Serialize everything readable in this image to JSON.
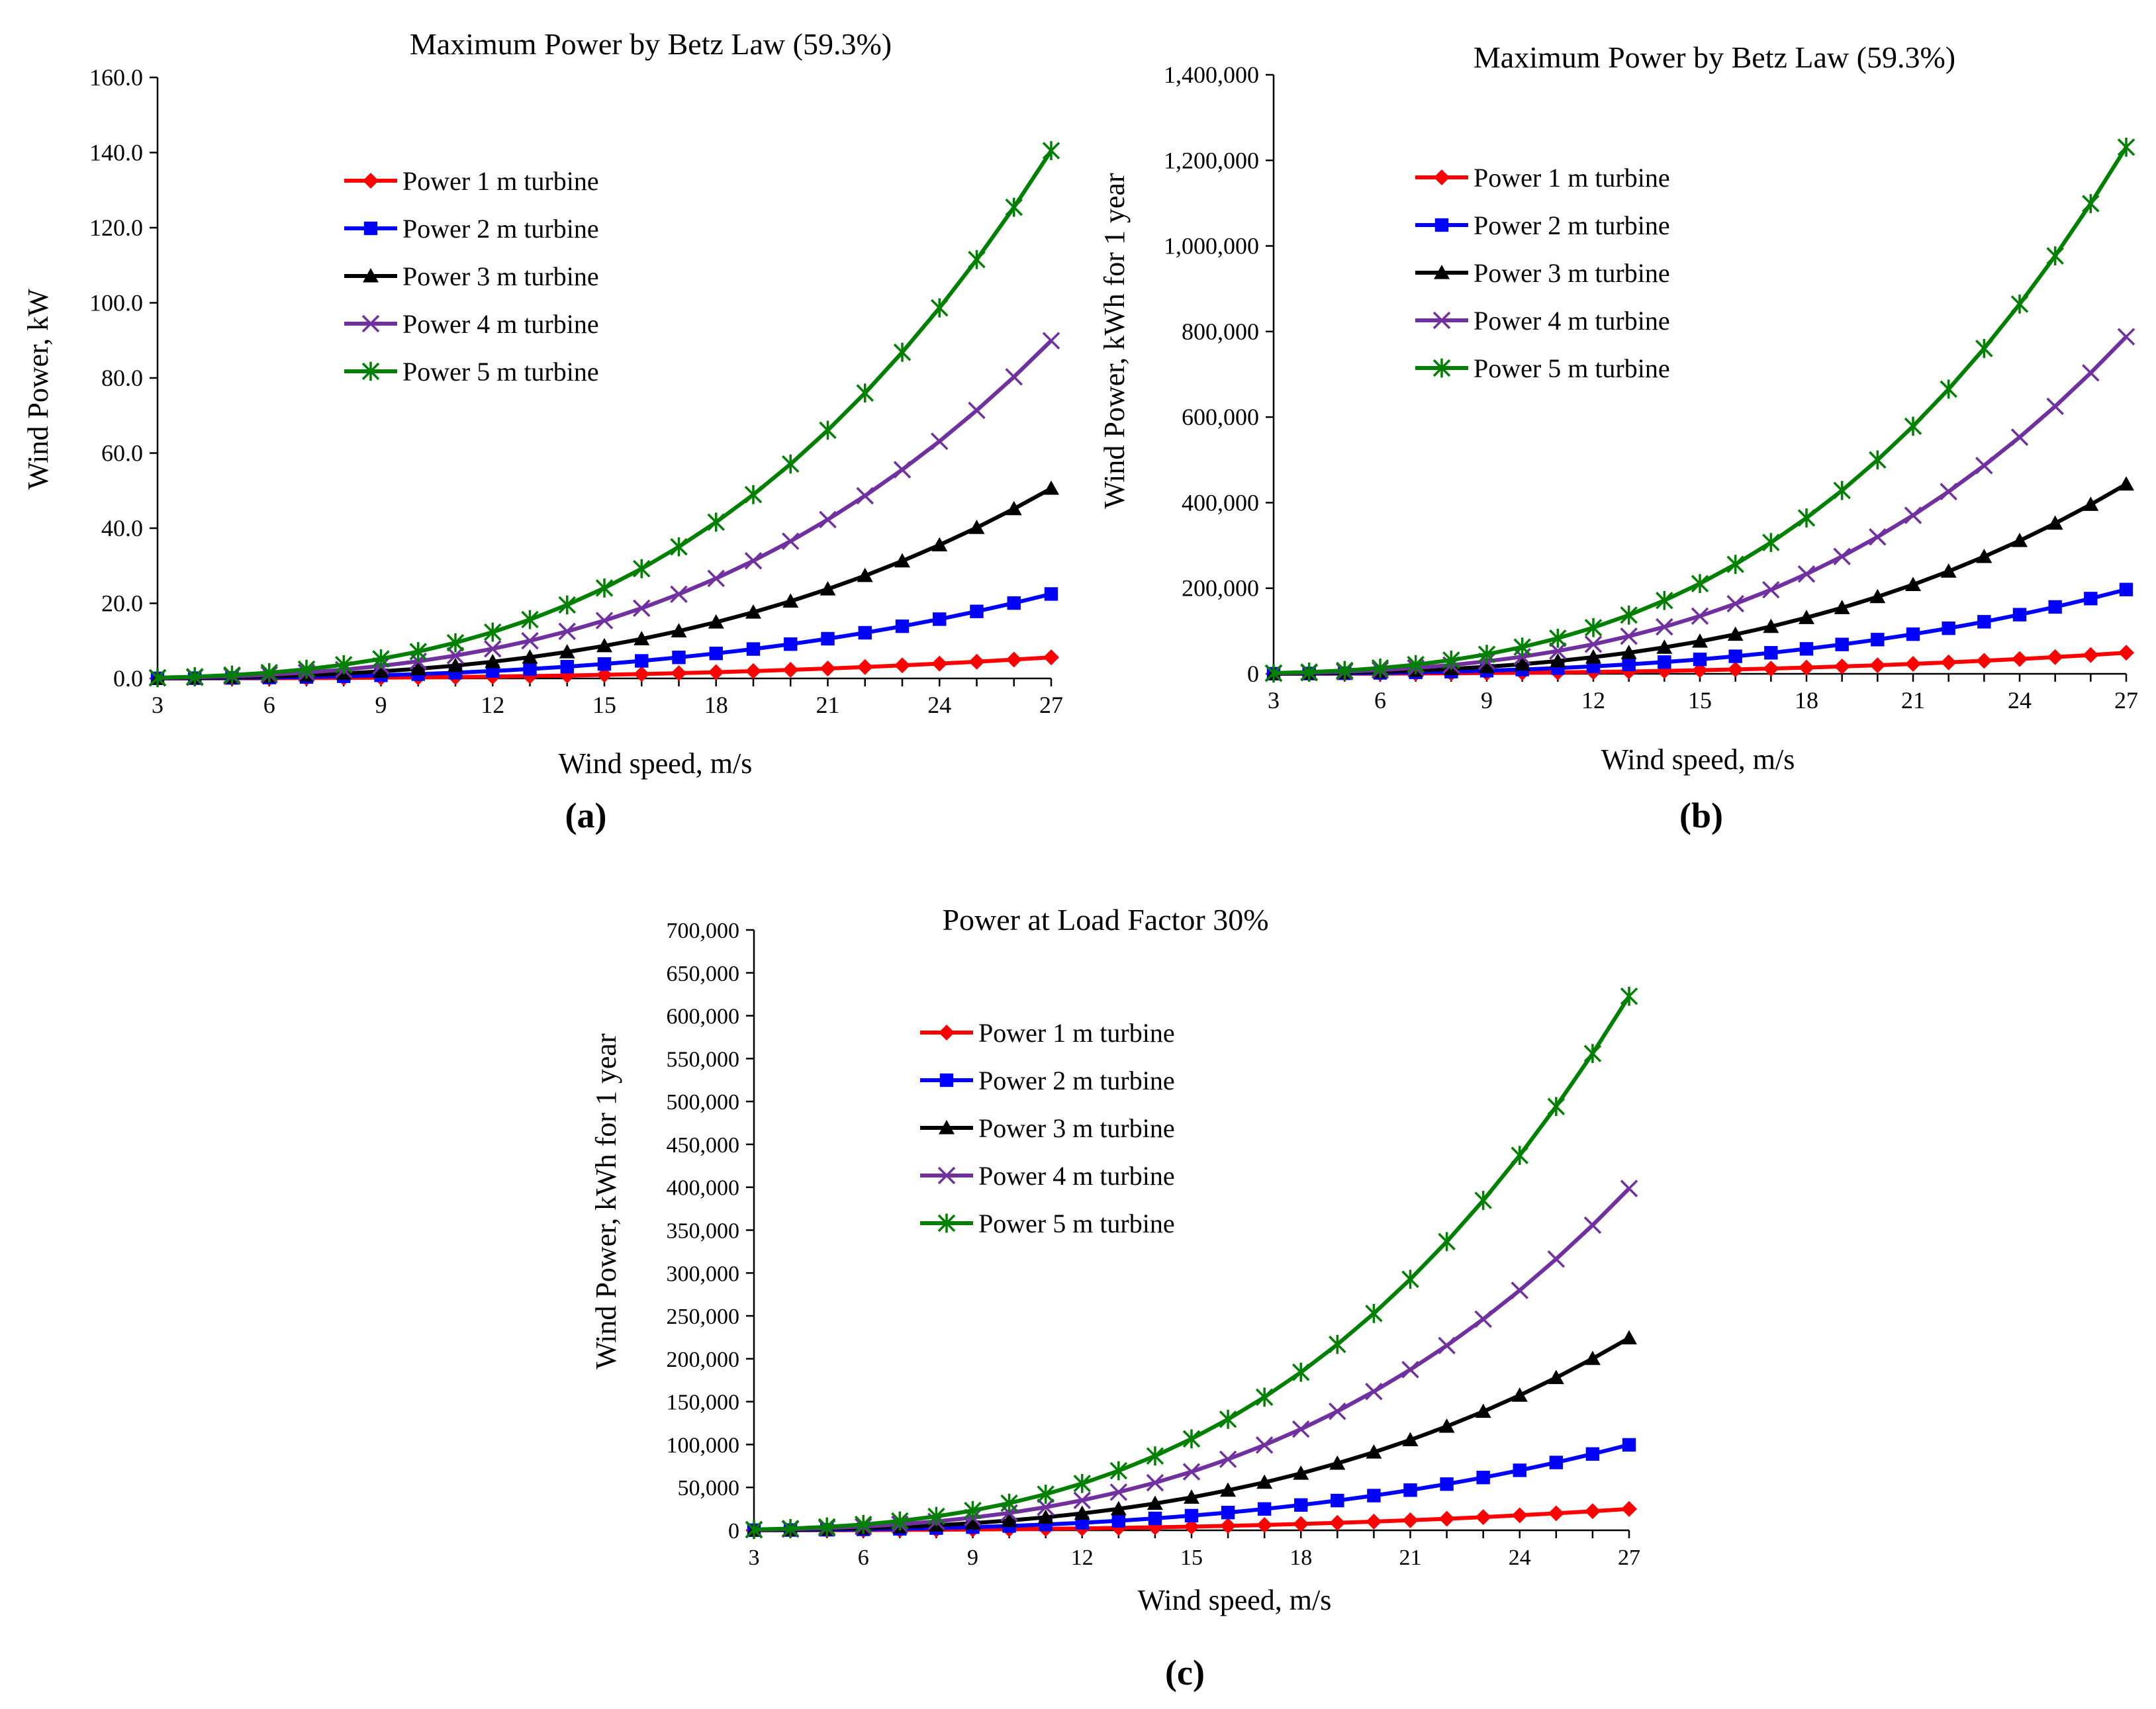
{
  "figure": {
    "panels": [
      "(a)",
      "(b)",
      "(c)"
    ]
  },
  "series_style": [
    {
      "name": "Power 1 m turbine",
      "color": "#ff0000",
      "marker": "diamond"
    },
    {
      "name": "Power 2 m turbine",
      "color": "#0000ff",
      "marker": "square"
    },
    {
      "name": "Power 3 m turbine",
      "color": "#000000",
      "marker": "triangle"
    },
    {
      "name": "Power 4 m turbine",
      "color": "#7030a0",
      "marker": "x"
    },
    {
      "name": "Power 5 m turbine",
      "color": "#008000",
      "marker": "star"
    }
  ],
  "chart_data": [
    {
      "type": "line",
      "panel_label": "(a)",
      "title": "Maximum Power by Betz Law (59.3%)",
      "xlabel": "Wind speed, m/s",
      "ylabel": "Wind Power, kW",
      "x": [
        3,
        4,
        5,
        6,
        7,
        8,
        9,
        10,
        11,
        12,
        13,
        14,
        15,
        16,
        17,
        18,
        19,
        20,
        21,
        22,
        23,
        24,
        25,
        26,
        27
      ],
      "xlim": [
        3,
        27
      ],
      "xticks": [
        "3",
        "6",
        "9",
        "12",
        "15",
        "18",
        "21",
        "24",
        "27"
      ],
      "ylim": [
        0,
        160
      ],
      "yticks": [
        "0.0",
        "20.0",
        "40.0",
        "60.0",
        "80.0",
        "100.0",
        "120.0",
        "140.0",
        "160.0"
      ],
      "legend_position": "upper-left",
      "series": [
        {
          "name": "Power 1 m turbine",
          "values": [
            0.008,
            0.018,
            0.036,
            0.062,
            0.098,
            0.146,
            0.208,
            0.285,
            0.38,
            0.493,
            0.627,
            0.783,
            0.963,
            1.169,
            1.402,
            1.665,
            1.958,
            2.283,
            2.643,
            3.039,
            3.473,
            3.946,
            4.46,
            5.018,
            5.62
          ]
        },
        {
          "name": "Power 2 m turbine",
          "values": [
            0.031,
            0.073,
            0.143,
            0.247,
            0.391,
            0.584,
            0.832,
            1.141,
            1.519,
            1.972,
            2.507,
            3.131,
            3.852,
            4.675,
            5.607,
            6.657,
            7.83,
            9.133,
            10.574,
            12.158,
            13.893,
            15.785,
            17.842,
            20.07,
            22.48
          ]
        },
        {
          "name": "Power 3 m turbine",
          "values": [
            0.069,
            0.164,
            0.321,
            0.555,
            0.881,
            1.315,
            1.872,
            2.568,
            3.418,
            4.437,
            5.641,
            7.046,
            8.666,
            10.518,
            12.617,
            14.978,
            17.618,
            20.55,
            23.792,
            27.355,
            31.259,
            35.517,
            40.144,
            45.158,
            50.58
          ]
        },
        {
          "name": "Power 4 m turbine",
          "values": [
            0.123,
            0.292,
            0.571,
            0.986,
            1.566,
            2.337,
            3.328,
            4.565,
            6.076,
            7.888,
            10.029,
            12.525,
            15.406,
            18.698,
            22.429,
            26.626,
            31.32,
            36.531,
            42.294,
            48.63,
            55.57,
            63.14,
            71.37,
            80.28,
            89.92
          ]
        },
        {
          "name": "Power 5 m turbine",
          "values": [
            0.193,
            0.457,
            0.892,
            1.541,
            2.447,
            3.653,
            5.2,
            7.133,
            9.494,
            12.326,
            15.67,
            19.57,
            24.071,
            29.216,
            35.044,
            41.604,
            48.935,
            57.08,
            66.086,
            75.983,
            86.83,
            98.65,
            111.51,
            125.44,
            140.5
          ]
        }
      ]
    },
    {
      "type": "line",
      "panel_label": "(b)",
      "title": "Maximum Power by Betz Law (59.3%)",
      "xlabel": "Wind speed, m/s",
      "ylabel": "Wind Power, kWh for 1 year",
      "x": [
        3,
        4,
        5,
        6,
        7,
        8,
        9,
        10,
        11,
        12,
        13,
        14,
        15,
        16,
        17,
        18,
        19,
        20,
        21,
        22,
        23,
        24,
        25,
        26,
        27
      ],
      "xlim": [
        3,
        27
      ],
      "xticks": [
        "3",
        "6",
        "9",
        "12",
        "15",
        "18",
        "21",
        "24",
        "27"
      ],
      "ylim": [
        0,
        1400000
      ],
      "yticks": [
        "0",
        "200,000",
        "400,000",
        "600,000",
        "800,000",
        "1,000,000",
        "1,200,000",
        "1,400,000"
      ],
      "legend_position": "upper-left",
      "series": [
        {
          "name": "Power 1 m turbine",
          "values": [
            67,
            160,
            312,
            540,
            857,
            1279,
            1821,
            2498,
            3325,
            4317,
            5488,
            6854,
            8430,
            10232,
            12273,
            14570,
            17138,
            19991,
            23145,
            26615,
            30416,
            34563,
            39072,
            43958,
            49235
          ]
        },
        {
          "name": "Power 2 m turbine",
          "values": [
            270,
            639,
            1249,
            2158,
            3427,
            5115,
            7283,
            9991,
            13299,
            17266,
            21951,
            27417,
            33718,
            40928,
            49092,
            58282,
            68553,
            79966,
            92578,
            106458,
            121663,
            138250,
            156288,
            175832,
            196942
          ]
        },
        {
          "name": "Power 3 m turbine",
          "values": [
            607,
            1439,
            2810,
            4856,
            7711,
            11510,
            16388,
            22480,
            29922,
            38848,
            49390,
            61687,
            75870,
            92087,
            110457,
            131133,
            154245,
            179917,
            208303,
            239532,
            273741,
            311063,
            351645,
            395622,
            443121
          ]
        },
        {
          "name": "Power 4 m turbine",
          "values": [
            1079,
            2557,
            4995,
            8633,
            13708,
            20462,
            29134,
            39965,
            53195,
            69063,
            87803,
            109667,
            134875,
            163713,
            196366,
            233131,
            274214,
            319875,
            370311,
            425803,
            486653,
            552988,
            625152,
            703278,
            787750
          ]
        },
        {
          "name": "Power 5 m turbine",
          "values": [
            1686,
            3996,
            7804,
            13489,
            21419,
            31973,
            45522,
            62444,
            83117,
            107911,
            137193,
            171355,
            210781,
            255791,
            306822,
            364259,
            428460,
            499809,
            578605,
            665319,
            760389,
            864033,
            976758,
            1098888,
            1230850
          ]
        }
      ]
    },
    {
      "type": "line",
      "panel_label": "(c)",
      "title": "Power at Load Factor 30%",
      "xlabel": "Wind speed, m/s",
      "ylabel": "Wind Power, kWh for 1 year",
      "x": [
        3,
        4,
        5,
        6,
        7,
        8,
        9,
        10,
        11,
        12,
        13,
        14,
        15,
        16,
        17,
        18,
        19,
        20,
        21,
        22,
        23,
        24,
        25,
        26,
        27
      ],
      "xlim": [
        3,
        27
      ],
      "xticks": [
        "3",
        "6",
        "9",
        "12",
        "15",
        "18",
        "21",
        "24",
        "27"
      ],
      "ylim": [
        0,
        700000
      ],
      "yticks": [
        "0",
        "50,000",
        "100,000",
        "150,000",
        "200,000",
        "250,000",
        "300,000",
        "350,000",
        "400,000",
        "450,000",
        "500,000",
        "550,000",
        "600,000",
        "650,000",
        "700,000"
      ],
      "legend_position": "upper-left",
      "series": [
        {
          "name": "Power 1 m turbine",
          "values": [
            34,
            81,
            158,
            273,
            434,
            647,
            921,
            1264,
            1682,
            2184,
            2776,
            3467,
            4264,
            5176,
            6209,
            7371,
            8670,
            10113,
            11708,
            13464,
            15387,
            17485,
            19765,
            22237,
            24906
          ]
        },
        {
          "name": "Power 2 m turbine",
          "values": [
            136,
            324,
            632,
            1092,
            1734,
            2588,
            3685,
            5055,
            6728,
            8735,
            11105,
            13870,
            17057,
            20705,
            24835,
            29482,
            34680,
            40453,
            46834,
            53855,
            61547,
            69940,
            79062,
            88952,
            99627
          ]
        },
        {
          "name": "Power 3 m turbine",
          "values": [
            307,
            728,
            1422,
            2457,
            3901,
            5823,
            8291,
            11373,
            15138,
            19653,
            24985,
            31207,
            38380,
            46585,
            55879,
            66337,
            78032,
            91016,
            105378,
            121178,
            138473,
            157353,
            177893,
            200128,
            224160
          ]
        },
        {
          "name": "Power 4 m turbine",
          "values": [
            546,
            1294,
            2527,
            4367,
            6935,
            10351,
            14739,
            20218,
            26911,
            34938,
            44418,
            55478,
            68231,
            82822,
            99339,
            117939,
            138725,
            161822,
            187343,
            215417,
            246197,
            279760,
            316272,
            355771,
            398510
          ]
        },
        {
          "name": "Power 5 m turbine",
          "values": [
            853,
            2022,
            3948,
            6824,
            10836,
            16175,
            23029,
            31590,
            42048,
            54590,
            69404,
            86686,
            106631,
            129420,
            155243,
            184296,
            216737,
            252846,
            292701,
            336580,
            384682,
            437120,
            494157,
            555920,
            622670
          ]
        }
      ]
    }
  ]
}
